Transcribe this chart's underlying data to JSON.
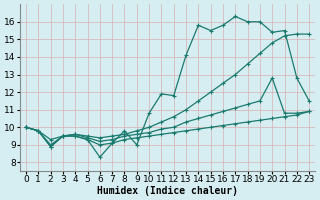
{
  "xlabel": "Humidex (Indice chaleur)",
  "bg_color": "#d6eef2",
  "grid_color": "#c8e0e8",
  "line_color": "#1a7a6e",
  "xlim": [
    -0.5,
    23.5
  ],
  "ylim": [
    7.5,
    17.0
  ],
  "yticks": [
    8,
    9,
    10,
    11,
    12,
    13,
    14,
    15,
    16
  ],
  "xticks": [
    0,
    1,
    2,
    3,
    4,
    5,
    6,
    7,
    8,
    9,
    10,
    11,
    12,
    13,
    14,
    15,
    16,
    17,
    18,
    19,
    20,
    21,
    22,
    23
  ],
  "line1_x": [
    0,
    1,
    2,
    3,
    4,
    5,
    6,
    7,
    8,
    9,
    10,
    11,
    12,
    13,
    14,
    15,
    16,
    17,
    18,
    19,
    20,
    21,
    22,
    23
  ],
  "line1_y": [
    10.0,
    9.8,
    8.9,
    9.5,
    9.5,
    9.3,
    8.3,
    9.1,
    9.8,
    9.0,
    10.8,
    11.9,
    11.8,
    14.1,
    15.8,
    15.5,
    15.8,
    16.3,
    16.0,
    16.0,
    15.4,
    15.5,
    12.8,
    11.5
  ],
  "line2_x": [
    0,
    1,
    2,
    3,
    4,
    5,
    6,
    7,
    8,
    9,
    10,
    11,
    12,
    13,
    14,
    15,
    16,
    17,
    18,
    19,
    20,
    21,
    22,
    23
  ],
  "line2_y": [
    10.0,
    9.8,
    9.3,
    9.5,
    9.6,
    9.5,
    9.4,
    9.5,
    9.6,
    9.8,
    10.0,
    10.3,
    10.6,
    11.0,
    11.5,
    12.0,
    12.5,
    13.0,
    13.6,
    14.2,
    14.8,
    15.2,
    15.3,
    15.3
  ],
  "line3_x": [
    0,
    1,
    2,
    3,
    4,
    5,
    6,
    7,
    8,
    9,
    10,
    11,
    12,
    13,
    14,
    15,
    16,
    17,
    18,
    19,
    20,
    21,
    22,
    23
  ],
  "line3_y": [
    10.0,
    9.8,
    9.0,
    9.5,
    9.6,
    9.4,
    9.2,
    9.3,
    9.5,
    9.6,
    9.7,
    9.9,
    10.0,
    10.3,
    10.5,
    10.7,
    10.9,
    11.1,
    11.3,
    11.5,
    12.8,
    10.8,
    10.8,
    10.9
  ],
  "line4_x": [
    0,
    1,
    2,
    3,
    4,
    5,
    6,
    7,
    8,
    9,
    10,
    11,
    12,
    13,
    14,
    15,
    16,
    17,
    18,
    19,
    20,
    21,
    22,
    23
  ],
  "line4_y": [
    10.0,
    9.8,
    8.9,
    9.5,
    9.5,
    9.3,
    9.0,
    9.1,
    9.3,
    9.4,
    9.5,
    9.6,
    9.7,
    9.8,
    9.9,
    10.0,
    10.1,
    10.2,
    10.3,
    10.4,
    10.5,
    10.6,
    10.7,
    10.9
  ],
  "marker_size": 3,
  "line_width": 0.9,
  "xlabel_fontsize": 7,
  "tick_fontsize": 6.5
}
